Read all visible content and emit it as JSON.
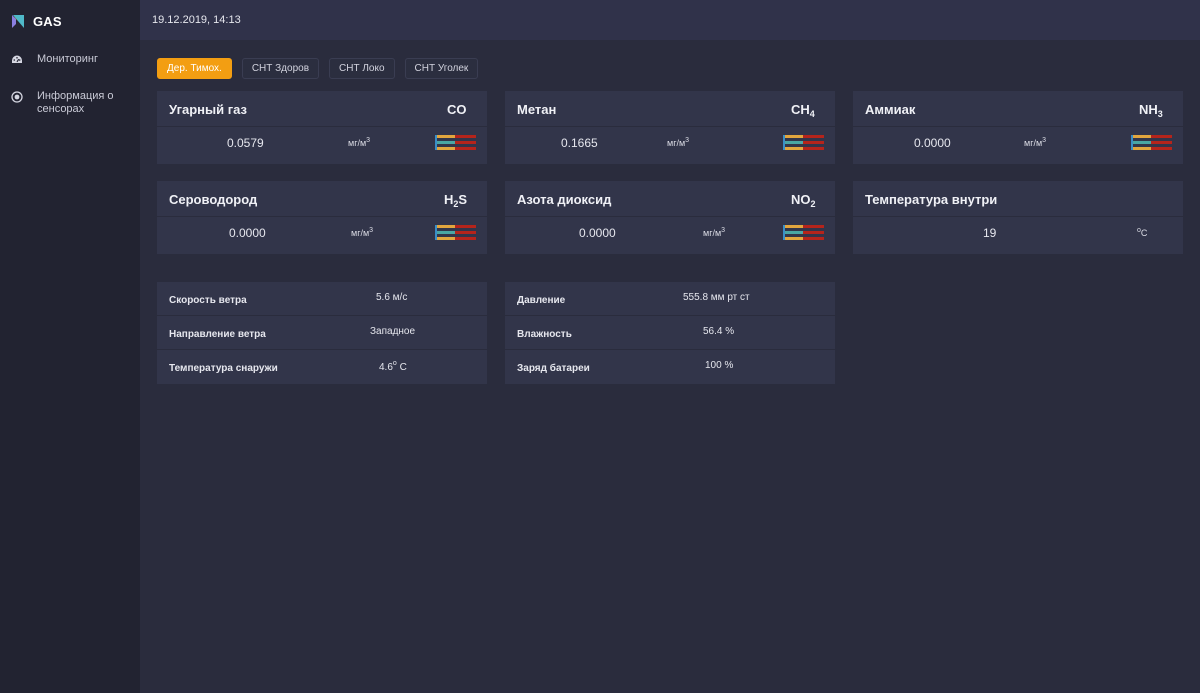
{
  "app": {
    "name": "GAS"
  },
  "colors": {
    "accent": "#f39e12",
    "sidebar": "#222331",
    "card": "#32354a",
    "gauge_red": "#b5241b",
    "gauge_orange": "#e2a63e",
    "gauge_teal": "#4aa6a4"
  },
  "sidebar": {
    "items": [
      {
        "label": "Мониторинг",
        "icon": "speedometer-icon"
      },
      {
        "label": "Информация о сенсорах",
        "icon": "target-icon"
      }
    ]
  },
  "topbar": {
    "datetime": "19.12.2019, 14:13"
  },
  "tabs": [
    {
      "label": "Дер. Тимох.",
      "active": true
    },
    {
      "label": "СНТ Здоров",
      "active": false
    },
    {
      "label": "СНТ Локо",
      "active": false
    },
    {
      "label": "СНТ Уголек",
      "active": false
    }
  ],
  "sensors": {
    "co": {
      "title": "Угарный газ",
      "formula": "CO",
      "value": "0.0579",
      "unit": "мг/м",
      "unit_sup": "3"
    },
    "ch4": {
      "title": "Метан",
      "formula": "CH",
      "formula_sub": "4",
      "value": "0.1665",
      "unit": "мг/м",
      "unit_sup": "3"
    },
    "nh3": {
      "title": "Аммиак",
      "formula": "NH",
      "formula_sub": "3",
      "value": "0.0000",
      "unit": "мг/м",
      "unit_sup": "3"
    },
    "h2s": {
      "title": "Сероводород",
      "formula": "H",
      "formula_sub": "2",
      "formula_tail": "S",
      "value": "0.0000",
      "unit": "мг/м",
      "unit_sup": "3"
    },
    "no2": {
      "title": "Азота диоксид",
      "formula": "NO",
      "formula_sub": "2",
      "value": "0.0000",
      "unit": "мг/м",
      "unit_sup": "3"
    },
    "temp_in": {
      "title": "Температура внутри",
      "value": "19",
      "unit_sup": "o",
      "unit": "C"
    }
  },
  "weather": {
    "wind_speed": {
      "label": "Скорость ветра",
      "value": "5.6 м/с"
    },
    "wind_dir": {
      "label": "Направление ветра",
      "value": "Западное"
    },
    "temp_out": {
      "label": "Температура снаружи",
      "value": "4.6",
      "unit_sup": "o",
      "unit": " C"
    }
  },
  "station": {
    "pressure": {
      "label": "Давление",
      "value": "555.8 мм рт ст"
    },
    "humidity": {
      "label": "Влажность",
      "value": "56.4 %"
    },
    "battery": {
      "label": "Заряд батареи",
      "value": "100 %"
    }
  }
}
